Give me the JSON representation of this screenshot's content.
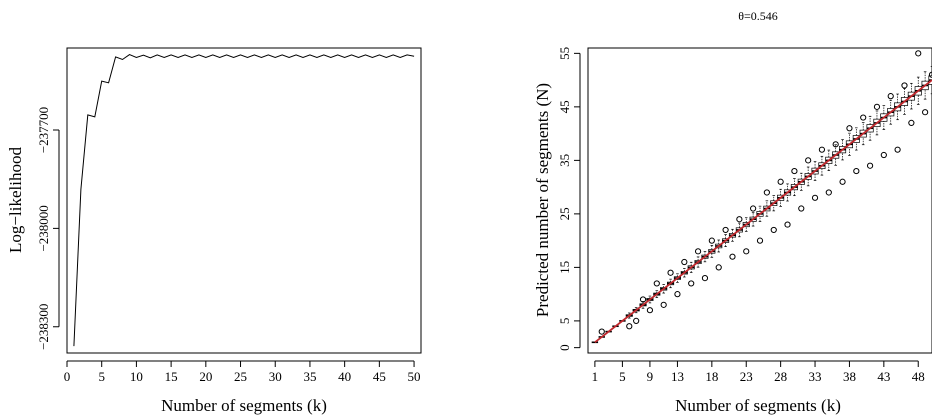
{
  "chart_data": [
    {
      "type": "line",
      "title": "",
      "xlabel": "Number of segments (k)",
      "ylabel": "Log−likelihood",
      "xlim": [
        0,
        51
      ],
      "ylim": [
        -238380,
        -237450
      ],
      "xticks": [
        0,
        5,
        10,
        15,
        20,
        25,
        30,
        35,
        40,
        45,
        50
      ],
      "yticks": [
        -238300,
        -238000,
        -237700
      ],
      "ytick_labels": [
        "−238300",
        "−238000",
        "−237700"
      ],
      "grid": false,
      "series": [
        {
          "x": [
            1,
            2,
            3,
            4,
            5,
            6,
            7,
            8,
            9,
            10,
            11,
            12,
            13,
            14,
            15,
            16,
            17,
            18,
            19,
            20,
            21,
            22,
            23,
            24,
            25,
            26,
            27,
            28,
            29,
            30,
            31,
            32,
            33,
            34,
            35,
            36,
            37,
            38,
            39,
            40,
            41,
            42,
            43,
            44,
            45,
            46,
            47,
            48,
            49,
            50
          ],
          "y": [
            -238359,
            -237881,
            -237654,
            -237660,
            -237551,
            -237556,
            -237477,
            -237485,
            -237470,
            -237479,
            -237472,
            -237480,
            -237471,
            -237479,
            -237471,
            -237479,
            -237471,
            -237479,
            -237471,
            -237479,
            -237471,
            -237479,
            -237471,
            -237479,
            -237471,
            -237479,
            -237471,
            -237479,
            -237471,
            -237479,
            -237471,
            -237479,
            -237471,
            -237479,
            -237471,
            -237479,
            -237471,
            -237479,
            -237471,
            -237479,
            -237471,
            -237479,
            -237471,
            -237479,
            -237471,
            -237479,
            -237471,
            -237479,
            -237471,
            -237475
          ]
        }
      ]
    },
    {
      "type": "boxplot",
      "title": "θ=0.546",
      "xlabel": "Number of segments (k)",
      "ylabel": "Predicted number of segments (N)",
      "xlim": [
        0,
        50
      ],
      "ylim": [
        -1,
        56
      ],
      "xtick_positions": [
        1,
        5,
        9,
        13,
        18,
        23,
        28,
        33,
        38,
        43,
        48
      ],
      "xtick_labels": [
        "1",
        "5",
        "9",
        "13",
        "18",
        "23",
        "28",
        "33",
        "38",
        "43",
        "48"
      ],
      "yticks": [
        0,
        5,
        15,
        25,
        35,
        45,
        55
      ],
      "grid": false,
      "reference_line": {
        "color": "#c0282d",
        "slope": 1,
        "intercept": 0
      },
      "box_spread": [
        0,
        0,
        0,
        0,
        0,
        0.3,
        0.3,
        0.4,
        0.4,
        0.4,
        0.5,
        0.5,
        0.5,
        0.5,
        0.6,
        0.6,
        0.6,
        0.7,
        0.7,
        0.7,
        0.7,
        0.8,
        0.8,
        0.8,
        0.9,
        0.9,
        0.9,
        1.0,
        1.0,
        1.0,
        1.0,
        1.1,
        1.1,
        1.1,
        1.2,
        1.2,
        1.2,
        1.3,
        1.3,
        1.3,
        1.4,
        1.4,
        1.4,
        1.4,
        1.5,
        1.5,
        1.5,
        1.6,
        1.6,
        1.6
      ],
      "outliers": [
        [
          2,
          3
        ],
        [
          6,
          4
        ],
        [
          7,
          5
        ],
        [
          8,
          9
        ],
        [
          9,
          7
        ],
        [
          10,
          12
        ],
        [
          11,
          8
        ],
        [
          12,
          14
        ],
        [
          13,
          10
        ],
        [
          14,
          16
        ],
        [
          15,
          12
        ],
        [
          16,
          18
        ],
        [
          17,
          13
        ],
        [
          18,
          20
        ],
        [
          19,
          15
        ],
        [
          20,
          22
        ],
        [
          21,
          17
        ],
        [
          22,
          24
        ],
        [
          23,
          18
        ],
        [
          24,
          26
        ],
        [
          25,
          20
        ],
        [
          26,
          29
        ],
        [
          27,
          22
        ],
        [
          28,
          31
        ],
        [
          29,
          23
        ],
        [
          30,
          33
        ],
        [
          31,
          26
        ],
        [
          32,
          35
        ],
        [
          33,
          28
        ],
        [
          34,
          37
        ],
        [
          35,
          29
        ],
        [
          36,
          38
        ],
        [
          37,
          31
        ],
        [
          38,
          41
        ],
        [
          39,
          33
        ],
        [
          40,
          43
        ],
        [
          41,
          34
        ],
        [
          42,
          45
        ],
        [
          43,
          36
        ],
        [
          44,
          47
        ],
        [
          45,
          37
        ],
        [
          46,
          49
        ],
        [
          47,
          42
        ],
        [
          48,
          55
        ],
        [
          49,
          44
        ],
        [
          50,
          51
        ]
      ]
    }
  ]
}
